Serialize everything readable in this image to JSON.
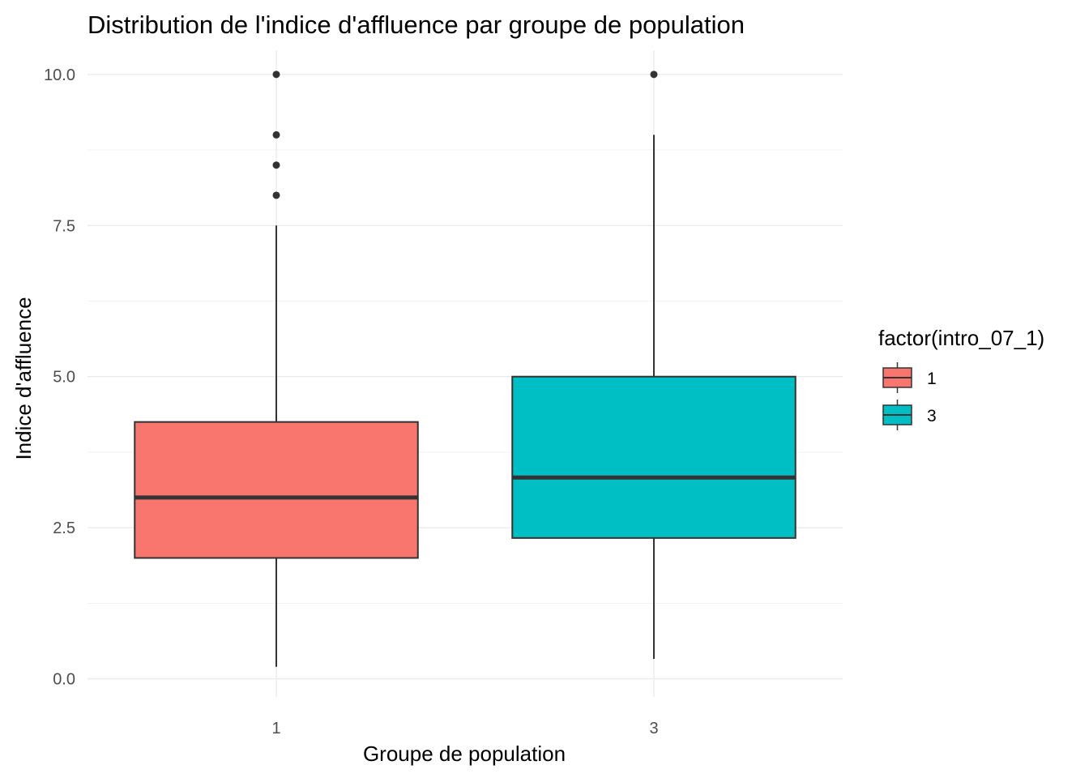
{
  "chart_data": {
    "type": "boxplot",
    "title": "Distribution de l'indice d'affluence par groupe de population",
    "xlabel": "Groupe de population",
    "ylabel": "Indice d'affluence",
    "ylim": [
      -0.3,
      10.4
    ],
    "y_ticks": [
      "0.0",
      "2.5",
      "5.0",
      "7.5",
      "10.0"
    ],
    "y_tick_values": [
      0,
      2.5,
      5,
      7.5,
      10
    ],
    "y_minor_values": [
      1.25,
      3.75,
      6.25,
      8.75
    ],
    "categories": [
      "1",
      "3"
    ],
    "grid": true,
    "legend": {
      "title": "factor(intro_07_1)",
      "position": "right",
      "entries": [
        {
          "label": "1",
          "color": "#F8766D"
        },
        {
          "label": "3",
          "color": "#00BFC4"
        }
      ]
    },
    "boxes": [
      {
        "group": "1",
        "min": 0.2,
        "q1": 2.0,
        "median": 3.0,
        "q3": 4.25,
        "max": 7.5,
        "outliers": [
          8.0,
          8.5,
          9.0,
          10.0
        ],
        "color": "#F8766D"
      },
      {
        "group": "3",
        "min": 0.33,
        "q1": 2.33,
        "median": 3.33,
        "q3": 5.0,
        "max": 9.0,
        "outliers": [
          10.0
        ],
        "color": "#00BFC4"
      }
    ]
  }
}
